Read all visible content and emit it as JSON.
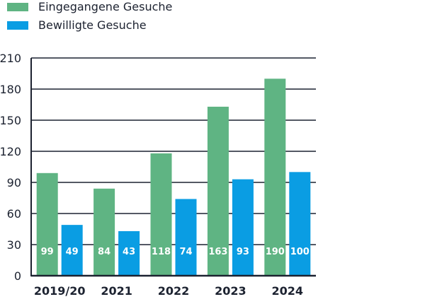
{
  "colors": {
    "received": "#5fb483",
    "approved": "#0a9de3",
    "axis": "#1c2230",
    "grid": "#1c2230"
  },
  "legend": {
    "items": [
      {
        "label": "Eingegangene Gesuche",
        "color": "#5fb483"
      },
      {
        "label": "Bewilligte Gesuche",
        "color": "#0a9de3"
      }
    ]
  },
  "chart_data": {
    "type": "bar",
    "categories": [
      "2019/20",
      "2021",
      "2022",
      "2023",
      "2024"
    ],
    "series": [
      {
        "name": "Eingegangene Gesuche",
        "values": [
          99,
          84,
          118,
          163,
          190
        ],
        "color": "#5fb483"
      },
      {
        "name": "Bewilligte Gesuche",
        "values": [
          49,
          43,
          74,
          93,
          100
        ],
        "color": "#0a9de3"
      }
    ],
    "ylim": [
      0,
      210
    ],
    "yticks": [
      0,
      30,
      60,
      90,
      120,
      150,
      180,
      210
    ],
    "grid": true,
    "legend_position": "top-left",
    "title": "",
    "xlabel": "",
    "ylabel": ""
  }
}
